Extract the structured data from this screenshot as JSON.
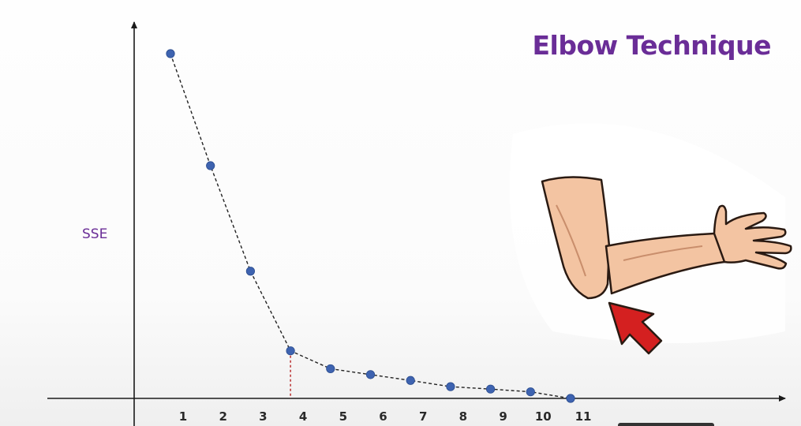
{
  "title": "Elbow Technique",
  "chart_data": {
    "type": "line",
    "title": "",
    "xlabel": "",
    "ylabel": "SSE",
    "categories": [
      "1",
      "2",
      "3",
      "4",
      "5",
      "6",
      "7",
      "8",
      "9",
      "10",
      "11"
    ],
    "values": [
      100,
      67.5,
      36.9,
      13.8,
      8.6,
      6.9,
      5.2,
      3.4,
      2.7,
      1.9,
      0
    ],
    "ylim": [
      0,
      105
    ],
    "line_style": "dashed",
    "marker_color": "#3e63b0",
    "elbow_marker": {
      "x": "4",
      "color": "#b52020",
      "style": "dashed"
    },
    "grid": false,
    "legend": "none"
  },
  "colors": {
    "title": "#6a2d97",
    "axis": "#1a1a1a",
    "arrow": "#d42020"
  },
  "illustration": "arm-bent-at-elbow-with-red-arrow"
}
